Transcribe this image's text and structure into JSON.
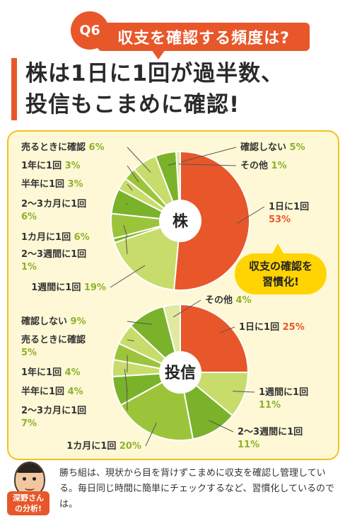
{
  "question": {
    "badge": "Q6",
    "text": "収支を確認する頻度は?"
  },
  "headline": {
    "line1": "株は1日に1回が過半数、",
    "line2": "投信もこまめに確認!"
  },
  "callout": {
    "line1": "収支の確認を",
    "line2": "習慣化!"
  },
  "analyst": {
    "name": "深野さん",
    "title": "の分析!"
  },
  "comment": "勝ち組は、現状から目を背けずこまめに収支を確認し管理している。毎日同じ時間に簡単にチェックするなど、習慣化しているのでは。",
  "colors": {
    "accent": "#e8572a",
    "green_dark": "#7ab22a",
    "green_mid": "#9cc43a",
    "green_light": "#c7dc6a",
    "green_pale": "#dfe9a0",
    "panel": "#fff8d6"
  },
  "chart_data": [
    {
      "type": "pie",
      "title": "株",
      "slices": [
        {
          "label": "1日に1回",
          "value": 53
        },
        {
          "label": "1週間に1回",
          "value": 19
        },
        {
          "label": "2～3週間に1回",
          "value": 1
        },
        {
          "label": "1カ月に1回",
          "value": 6
        },
        {
          "label": "2～3カ月に1回",
          "value": 6
        },
        {
          "label": "半年に1回",
          "value": 3
        },
        {
          "label": "1年に1回",
          "value": 3
        },
        {
          "label": "売るときに確認",
          "value": 6
        },
        {
          "label": "確認しない",
          "value": 5
        },
        {
          "label": "その他",
          "value": 1
        }
      ]
    },
    {
      "type": "pie",
      "title": "投信",
      "slices": [
        {
          "label": "1日に1回",
          "value": 25
        },
        {
          "label": "1週間に1回",
          "value": 11
        },
        {
          "label": "2～3週間に1回",
          "value": 11
        },
        {
          "label": "1カ月に1回",
          "value": 20
        },
        {
          "label": "2～3カ月に1回",
          "value": 7
        },
        {
          "label": "半年に1回",
          "value": 4
        },
        {
          "label": "1年に1回",
          "value": 4
        },
        {
          "label": "売るときに確認",
          "value": 5
        },
        {
          "label": "確認しない",
          "value": 9
        },
        {
          "label": "その他",
          "value": 4
        }
      ]
    }
  ]
}
